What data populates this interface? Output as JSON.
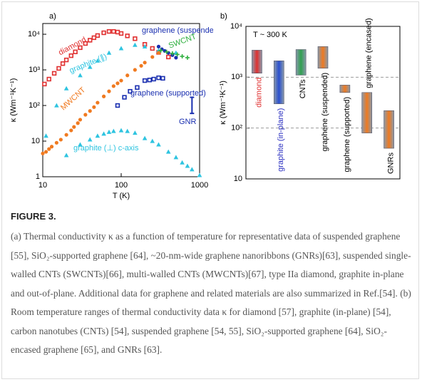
{
  "chart_data": [
    {
      "type": "scatter",
      "panel_label": "a)",
      "x_label": "T (K)",
      "y_label": "κ (Wm⁻¹K⁻¹)",
      "log_x": true,
      "log_y": true,
      "xlim": [
        10,
        1000
      ],
      "ylim": [
        1,
        20000
      ],
      "xticks": [
        10,
        100,
        1000
      ],
      "yticks": [
        1,
        10,
        {
          "value": 100,
          "label": "10²"
        },
        {
          "value": 1000,
          "label": "10³"
        },
        {
          "value": 10000,
          "label": "10⁴"
        }
      ],
      "series": [
        {
          "name": "diamond",
          "color": "#e03030",
          "marker": "square",
          "x": [
            10.5,
            12,
            14,
            16,
            18,
            20,
            23,
            26,
            30,
            35,
            40,
            45,
            50,
            60,
            70,
            80,
            90,
            100,
            120,
            150,
            200,
            250,
            300,
            400
          ],
          "values": [
            400,
            550,
            800,
            1100,
            1500,
            1900,
            2500,
            3200,
            4200,
            5500,
            6800,
            8000,
            9200,
            11000,
            12000,
            12000,
            11500,
            10500,
            9000,
            7500,
            5200,
            4000,
            3100,
            2300
          ]
        },
        {
          "name": "graphite (∥)",
          "color": "#2ec4e0",
          "marker": "triangle",
          "x": [
            11,
            15,
            20,
            30,
            40,
            50,
            70,
            100,
            150,
            200,
            300,
            500
          ],
          "values": [
            14,
            100,
            300,
            700,
            1200,
            1800,
            3000,
            4000,
            5000,
            4500,
            3500,
            3000
          ]
        },
        {
          "name": "MWCNT",
          "color": "#f07a20",
          "marker": "circle",
          "x": [
            10,
            11,
            12,
            13,
            15,
            17,
            20,
            23,
            25,
            28,
            30,
            35,
            40,
            45,
            50,
            60,
            70,
            80,
            90,
            100,
            120,
            150,
            180,
            200,
            250,
            300
          ],
          "values": [
            4.5,
            5,
            6,
            7,
            9,
            11,
            15,
            20,
            25,
            32,
            40,
            55,
            70,
            90,
            120,
            180,
            250,
            350,
            420,
            500,
            700,
            1000,
            1300,
            1600,
            2300,
            3000
          ]
        },
        {
          "name": "graphene (supported)",
          "color": "#1a2fb0",
          "marker": "square",
          "x": [
            90,
            110,
            130,
            160,
            200,
            230,
            260,
            300,
            340
          ],
          "values": [
            100,
            170,
            250,
            320,
            500,
            520,
            550,
            600,
            580
          ]
        },
        {
          "name": "graphite (⊥) c-axis",
          "color": "#2ec4e0",
          "marker": "triangle",
          "x": [
            20,
            30,
            40,
            50,
            60,
            70,
            80,
            100,
            120,
            150,
            200,
            250,
            300,
            400,
            500,
            600,
            700,
            800,
            1000
          ],
          "values": [
            4,
            8,
            11,
            14,
            16,
            18,
            19,
            20,
            19,
            17,
            12,
            10,
            8,
            5,
            3.5,
            2.5,
            2,
            1.6,
            1.1
          ]
        },
        {
          "name": "graphene (suspended)",
          "color": "#1a2fb0",
          "marker": "circle",
          "x": [
            300,
            330,
            360,
            400,
            450,
            500
          ],
          "values": [
            4500,
            3800,
            3400,
            3000,
            2600,
            2200
          ]
        },
        {
          "name": "SWCNT",
          "color": "#30b040",
          "marker": "plus",
          "x": [
            320,
            380,
            450,
            520,
            600,
            700
          ],
          "values": [
            3500,
            3200,
            2900,
            2700,
            2400,
            2200
          ]
        },
        {
          "name": "GNR",
          "color": "#1a2fb0",
          "marker": "errorbar",
          "x": [
            800
          ],
          "values": [
            110
          ],
          "error_low": [
            50
          ],
          "error_high": [
            60
          ]
        }
      ]
    },
    {
      "type": "range",
      "panel_label": "b)",
      "y_label": "κ (Wm⁻¹K⁻¹)",
      "annotation": "T ~ 300 K",
      "log_y": true,
      "grid": true,
      "ylim": [
        10,
        10000
      ],
      "yticks": [
        10,
        {
          "value": 100,
          "label": "10²"
        },
        {
          "value": 1000,
          "label": "10³"
        },
        {
          "value": 10000,
          "label": "10⁴"
        }
      ],
      "categories": [
        "diamond",
        "graphite (in-plane)",
        "CNTs",
        "graphene (suspended)",
        "graphene (supported)",
        "graphene (encased)",
        "GNRs"
      ],
      "low": [
        1200,
        300,
        1100,
        1500,
        500,
        80,
        40
      ],
      "high": [
        3400,
        2100,
        3500,
        4000,
        700,
        500,
        220
      ],
      "colors": [
        "#e03030",
        "#2a4fd0",
        "#30a050",
        "#f07a20",
        "#f07a20",
        "#f07a20",
        "#f07a20"
      ],
      "label_colors": [
        "#e03030",
        "#2a2fc0",
        "#000000",
        "#000000",
        "#000000",
        "#000000",
        "#000000"
      ]
    }
  ],
  "figure_label": "FIGURE 3.",
  "caption": "(a) Thermal conductivity κ as a function of temperature for representative data of suspended graphene [55], SiO₂-supported graphene [64], ~20-nm-wide graphene nanoribbons (GNRs)[63], suspended single-walled CNTs (SWCNTs)[66], multi-walled CNTs (MWCNTs)[67], type IIa diamond, graphite in-plane and out-of-plane. Additional data for graphene and related materials are also summarized in Ref.[54]. (b) Room temperature ranges of thermal conductivity data κ for diamond [57], graphite (in-plane) [54], carbon nanotubes (CNTs) [54], suspended graphene [54, 55], SiO₂-supported graphene [64], SiO₂-encased graphene [65], and GNRs [63]."
}
